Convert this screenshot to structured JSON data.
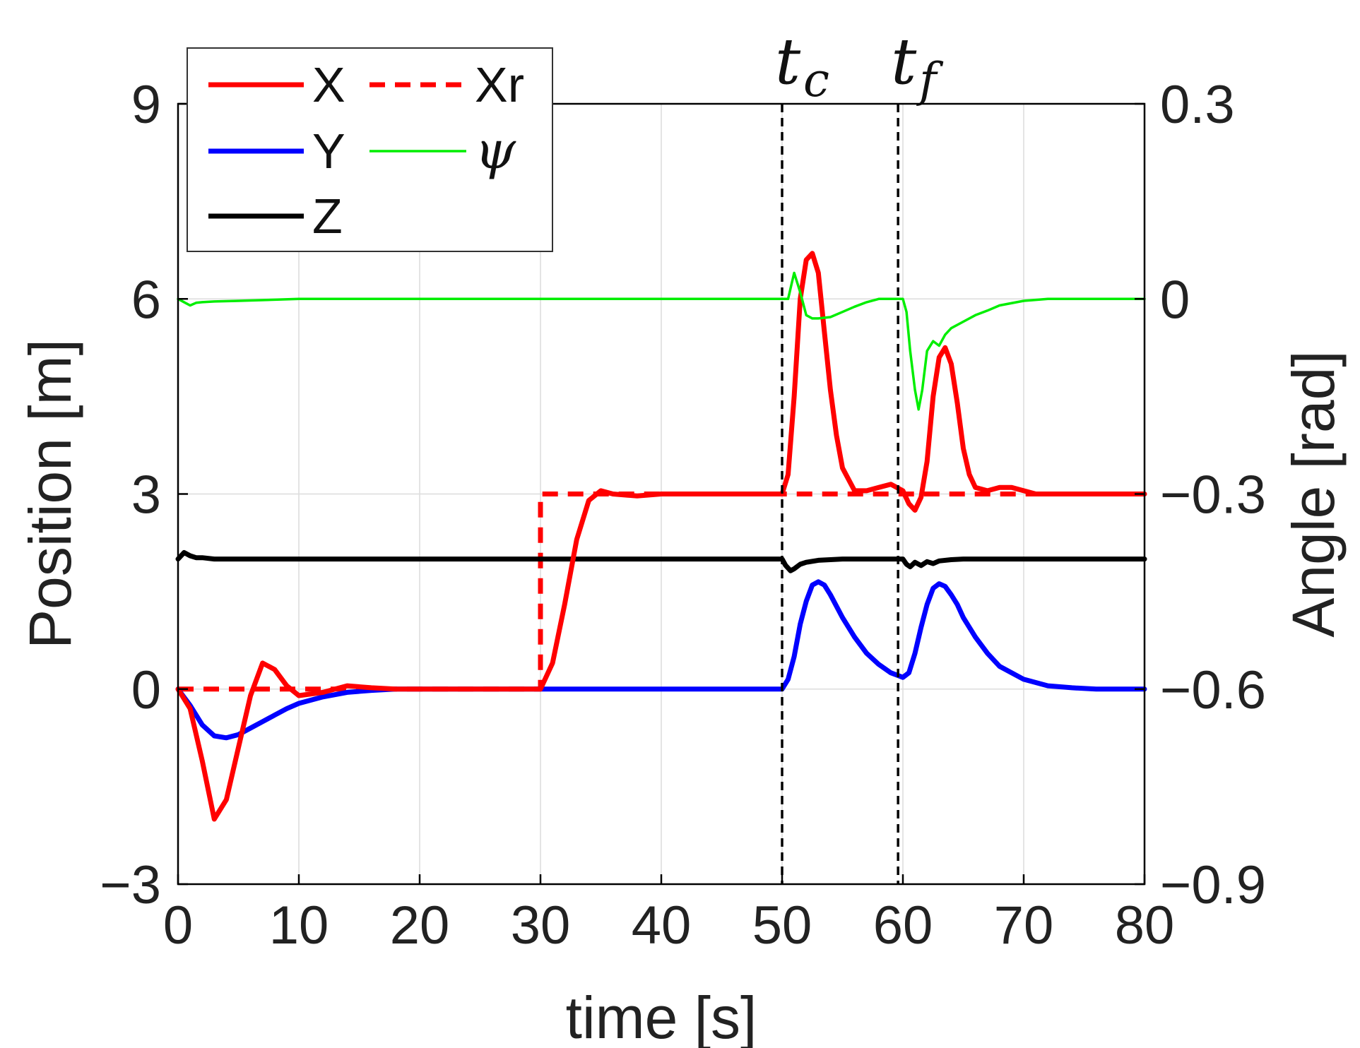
{
  "chart_data": {
    "type": "line",
    "xlabel": "time [s]",
    "ylabel_left": "Position [m]",
    "ylabel_right": "Angle [rad]",
    "xlim": [
      0,
      80
    ],
    "ylim_left": [
      -3,
      9
    ],
    "ylim_right": [
      -0.9,
      0.3
    ],
    "xticks": [
      0,
      10,
      20,
      30,
      40,
      50,
      60,
      70,
      80
    ],
    "xtick_labels": [
      "0",
      "10",
      "20",
      "30",
      "40",
      "50",
      "60",
      "70",
      "80"
    ],
    "yticks_left": [
      -3,
      0,
      3,
      6,
      9
    ],
    "ytick_labels_left": [
      "−3",
      "0",
      "3",
      "6",
      "9"
    ],
    "yticks_right": [
      -0.9,
      -0.6,
      -0.3,
      0,
      0.3
    ],
    "ytick_labels_right": [
      "−0.9",
      "−0.6",
      "−0.3",
      "0",
      "0.3"
    ],
    "grid": true,
    "legend_position": "top-left",
    "markers": [
      {
        "x": 50,
        "label": "t",
        "sub": "c"
      },
      {
        "x": 59.6,
        "label": "t",
        "sub": "f"
      }
    ],
    "series": [
      {
        "name": "X",
        "axis": "left",
        "color": "#ff0000",
        "style": "solid",
        "x": [
          0,
          1,
          2,
          3,
          4,
          5,
          6,
          7,
          8,
          9,
          10,
          12,
          14,
          16,
          18,
          20,
          25,
          30,
          31,
          32,
          33,
          34,
          35,
          36,
          38,
          40,
          45,
          50,
          50.5,
          51,
          51.5,
          52,
          52.5,
          53,
          53.5,
          54,
          54.5,
          55,
          56,
          57,
          58,
          59,
          60,
          60.5,
          61,
          61.5,
          62,
          62.5,
          63,
          63.5,
          64,
          64.5,
          65,
          65.5,
          66,
          67,
          68,
          69,
          70,
          71,
          72,
          74,
          76,
          80
        ],
        "y": [
          0,
          -0.3,
          -1.1,
          -2.0,
          -1.7,
          -0.9,
          -0.1,
          0.4,
          0.3,
          0.05,
          -0.1,
          -0.05,
          0.05,
          0.02,
          0,
          0,
          0,
          0,
          0.4,
          1.3,
          2.3,
          2.9,
          3.05,
          3.0,
          2.97,
          3.0,
          3.0,
          3.0,
          3.3,
          4.5,
          6.0,
          6.6,
          6.7,
          6.4,
          5.5,
          4.6,
          3.9,
          3.4,
          3.05,
          3.05,
          3.1,
          3.15,
          3.05,
          2.85,
          2.75,
          2.95,
          3.5,
          4.5,
          5.1,
          5.25,
          5.0,
          4.4,
          3.7,
          3.3,
          3.1,
          3.05,
          3.1,
          3.1,
          3.05,
          3.0,
          3.0,
          3.0,
          3.0,
          3.0
        ]
      },
      {
        "name": "Xr",
        "axis": "left",
        "color": "#ff0000",
        "style": "dashed",
        "x": [
          0,
          30,
          30,
          80
        ],
        "y": [
          0,
          0,
          3,
          3
        ]
      },
      {
        "name": "Y",
        "axis": "left",
        "color": "#0000ff",
        "style": "solid",
        "x": [
          0,
          1,
          2,
          3,
          4,
          5,
          6,
          7,
          8,
          9,
          10,
          12,
          14,
          16,
          18,
          20,
          30,
          40,
          50,
          50.5,
          51,
          51.5,
          52,
          52.5,
          53,
          53.5,
          54,
          55,
          56,
          57,
          58,
          59,
          60,
          60.5,
          61,
          61.5,
          62,
          62.5,
          63,
          63.5,
          64,
          64.5,
          65,
          66,
          67,
          68,
          70,
          72,
          74,
          76,
          80
        ],
        "y": [
          0,
          -0.25,
          -0.55,
          -0.72,
          -0.75,
          -0.7,
          -0.6,
          -0.5,
          -0.4,
          -0.3,
          -0.22,
          -0.12,
          -0.05,
          -0.02,
          0,
          0,
          0,
          0,
          0,
          0.15,
          0.5,
          1.0,
          1.35,
          1.6,
          1.65,
          1.6,
          1.45,
          1.1,
          0.8,
          0.55,
          0.38,
          0.25,
          0.18,
          0.25,
          0.55,
          0.95,
          1.3,
          1.55,
          1.62,
          1.58,
          1.45,
          1.3,
          1.1,
          0.8,
          0.55,
          0.35,
          0.15,
          0.05,
          0.02,
          0,
          0
        ]
      },
      {
        "name": "Z",
        "axis": "left",
        "color": "#000000",
        "style": "solid",
        "x": [
          0,
          0.5,
          1,
          1.5,
          2,
          3,
          5,
          10,
          20,
          30,
          40,
          50,
          50.3,
          50.7,
          51,
          51.5,
          52,
          53,
          55,
          60,
          60.3,
          60.6,
          61,
          61.5,
          62,
          62.5,
          63,
          64,
          65,
          70,
          80
        ],
        "y": [
          2.0,
          2.1,
          2.05,
          2.02,
          2.02,
          2.0,
          2.0,
          2.0,
          2.0,
          2.0,
          2.0,
          2.0,
          1.9,
          1.82,
          1.85,
          1.92,
          1.95,
          1.98,
          2.0,
          2.0,
          1.92,
          1.88,
          1.95,
          1.9,
          1.96,
          1.93,
          1.97,
          1.99,
          2.0,
          2.0,
          2.0
        ]
      },
      {
        "name": "ψ",
        "axis": "right",
        "color": "#00ee00",
        "style": "solid",
        "x": [
          0,
          0.5,
          1,
          1.5,
          2,
          3,
          5,
          10,
          20,
          30,
          40,
          50,
          50.5,
          51,
          51.5,
          52,
          52.5,
          53,
          54,
          55,
          56,
          57,
          58,
          59,
          60,
          60.3,
          60.6,
          61,
          61.3,
          61.6,
          62,
          62.5,
          63,
          63.5,
          64,
          65,
          66,
          67,
          68,
          70,
          72,
          75,
          80
        ],
        "y": [
          0.0,
          -0.005,
          -0.01,
          -0.006,
          -0.005,
          -0.004,
          -0.003,
          0,
          0,
          0,
          0,
          0,
          0,
          0.04,
          0.01,
          -0.025,
          -0.03,
          -0.03,
          -0.028,
          -0.02,
          -0.012,
          -0.005,
          0,
          0,
          0,
          -0.02,
          -0.08,
          -0.14,
          -0.17,
          -0.14,
          -0.08,
          -0.065,
          -0.072,
          -0.055,
          -0.045,
          -0.035,
          -0.025,
          -0.018,
          -0.01,
          -0.003,
          0,
          0,
          0
        ]
      }
    ]
  },
  "legend": {
    "x_label": "X",
    "xr_label": "Xr",
    "y_label": "Y",
    "psi_label": "ψ",
    "z_label": "Z"
  }
}
